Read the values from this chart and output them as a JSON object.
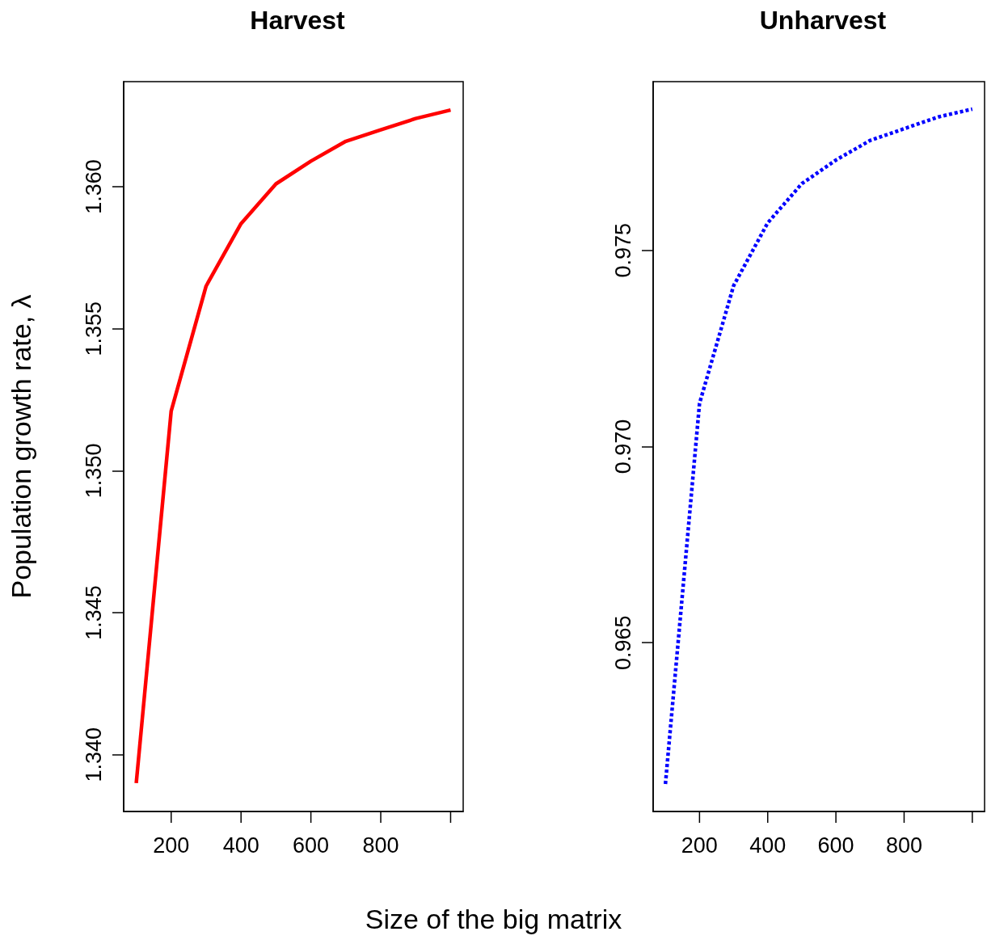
{
  "chart_data": [
    {
      "type": "line",
      "title": "Harvest",
      "xlabel": "Size of the big matrix",
      "ylabel": "Population growth rate, λ",
      "x": [
        100,
        200,
        300,
        400,
        500,
        600,
        700,
        800,
        900,
        1000
      ],
      "series": [
        {
          "color": "#ff0000",
          "line_style": "solid",
          "values": [
            1.339,
            1.3521,
            1.3565,
            1.3587,
            1.3601,
            1.3609,
            1.3616,
            1.362,
            1.3624,
            1.3627
          ]
        }
      ],
      "xlim": [
        64,
        1036
      ],
      "xticks": [
        200,
        400,
        600,
        800,
        {
          "value": 1000,
          "label": null
        }
      ],
      "ylim": [
        1.338,
        1.3637
      ],
      "yticks": [
        {
          "value": 1.34,
          "label": "1.340"
        },
        {
          "value": 1.345,
          "label": "1.345"
        },
        {
          "value": 1.35,
          "label": "1.350"
        },
        {
          "value": 1.355,
          "label": "1.355"
        },
        {
          "value": 1.36,
          "label": "1.360"
        }
      ],
      "marker": "none",
      "grid": false
    },
    {
      "type": "line",
      "title": "Unharvest",
      "x": [
        100,
        200,
        300,
        400,
        500,
        600,
        700,
        800,
        900,
        1000
      ],
      "series": [
        {
          "color": "#0000ff",
          "line_style": "dashed",
          "values": [
            0.9614,
            0.9711,
            0.9741,
            0.9757,
            0.9767,
            0.9773,
            0.9778,
            0.9781,
            0.9784,
            0.9786
          ]
        }
      ],
      "xlim": [
        64,
        1036
      ],
      "xticks": [
        200,
        400,
        600,
        800,
        {
          "value": 1000,
          "label": null
        }
      ],
      "ylim": [
        0.9607,
        0.9793
      ],
      "yticks": [
        {
          "value": 0.965,
          "label": "0.965"
        },
        {
          "value": 0.97,
          "label": "0.970"
        },
        {
          "value": 0.975,
          "label": "0.975"
        }
      ],
      "marker": "none",
      "grid": false
    }
  ]
}
